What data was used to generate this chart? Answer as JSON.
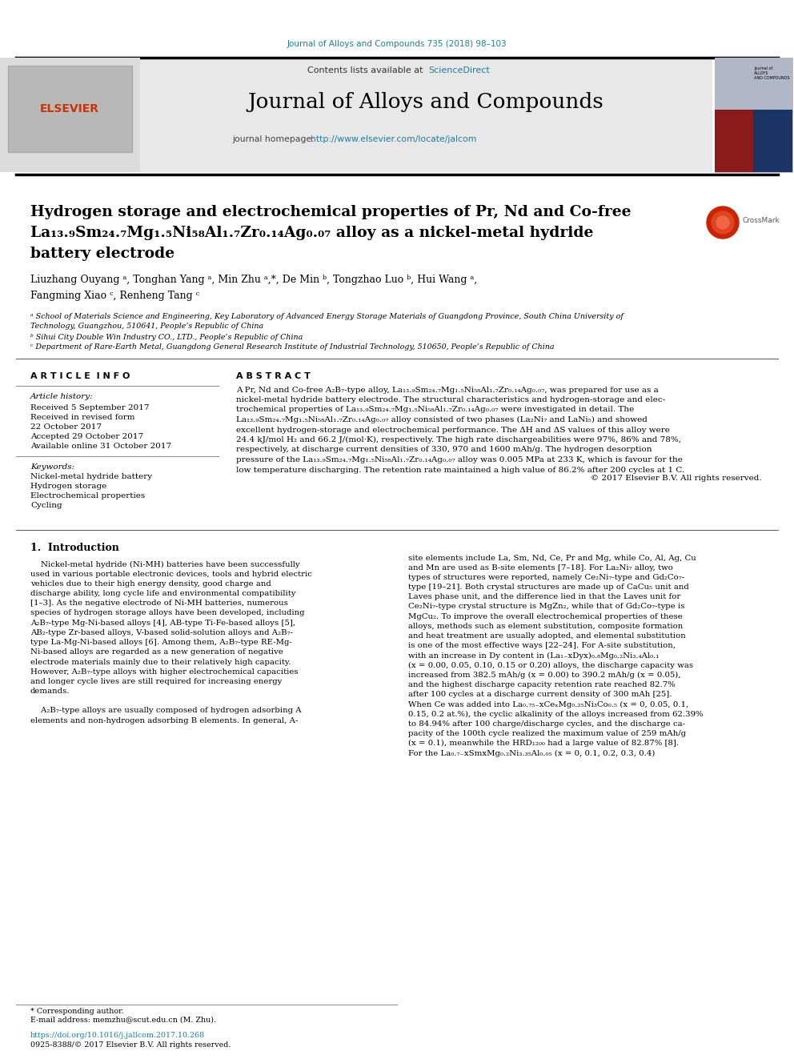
{
  "journal_ref": "Journal of Alloys and Compounds 735 (2018) 98–103",
  "journal_name": "Journal of Alloys and Compounds",
  "journal_homepage_label": "journal homepage:",
  "journal_homepage_url": "http://www.elsevier.com/locate/jalcom",
  "contents_label": "Contents lists available at ",
  "sciencedirect": "ScienceDirect",
  "title_line1": "Hydrogen storage and electrochemical properties of Pr, Nd and Co-free",
  "title_line2": "La₁₃.₉Sm₂₄.₇Mg₁.₅Ni₅₈Al₁.₇Zr₀.₁₄Ag₀.₀₇ alloy as a nickel-metal hydride",
  "title_line3": "battery electrode",
  "authors": "Liuzhang Ouyang ᵃ, Tonghan Yang ᵃ, Min Zhu ᵃ,*, De Min ᵇ, Tongzhao Luo ᵇ, Hui Wang ᵃ,",
  "authors2": "Fangming Xiao ᶜ, Renheng Tang ᶜ",
  "affil_a": "ᵃ School of Materials Science and Engineering, Key Laboratory of Advanced Energy Storage Materials of Guangdong Province, South China University of",
  "affil_a2": "Technology, Guangzhou, 510641, People’s Republic of China",
  "affil_b": "ᵇ Sihui City Double Win Industry CO., LTD., People’s Republic of China",
  "affil_c": "ᶜ Department of Rare-Earth Metal, Guangdong General Research Institute of Industrial Technology, 510650, People’s Republic of China",
  "article_info_title": "A R T I C L E  I N F O",
  "abstract_title": "A B S T R A C T",
  "article_history_label": "Article history:",
  "received1": "Received 5 September 2017",
  "received2": "Received in revised form",
  "date_revised": "22 October 2017",
  "accepted": "Accepted 29 October 2017",
  "available": "Available online 31 October 2017",
  "keywords_label": "Keywords:",
  "keyword1": "Nickel-metal hydride battery",
  "keyword2": "Hydrogen storage",
  "keyword3": "Electrochemical properties",
  "keyword4": "Cycling",
  "abstract_text_1": "A Pr, Nd and Co-free A₂B₇-type alloy, La₁₃.₉Sm₂₄.₇Mg₁.₅Ni₅₈Al₁.₇Zr₀.₁₄Ag₀.₀₇, was prepared for use as a",
  "abstract_text_2": "nickel-metal hydride battery electrode. The structural characteristics and hydrogen-storage and elec-",
  "abstract_text_3": "trochemical properties of La₁₃.₉Sm₂₄.₇Mg₁.₅Ni₅₈Al₁.₇Zr₀.₁₄Ag₀.₀₇ were investigated in detail. The",
  "abstract_text_4": "La₁₃.₉Sm₂₄.₇Mg₁.₅Ni₅₈Al₁.₇Zr₀.₁₄Ag₀.₀₇ alloy consisted of two phases (La₂Ni₇ and LaNi₅) and showed",
  "abstract_text_5": "excellent hydrogen-storage and electrochemical performance. The ΔH and ΔS values of this alloy were",
  "abstract_text_6": "24.4 kJ/mol H₂ and 66.2 J/(mol·K), respectively. The high rate dischargeabilities were 97%, 86% and 78%,",
  "abstract_text_7": "respectively, at discharge current densities of 330, 970 and 1600 mAh/g. The hydrogen desorption",
  "abstract_text_8": "pressure of the La₁₃.₉Sm₂₄.₇Mg₁.₅Ni₅₈Al₁.₇Zr₀.₁₄Ag₀.₀₇ alloy was 0.005 MPa at 233 K, which is favour for the",
  "abstract_text_9": "low temperature discharging. The retention rate maintained a high value of 86.2% after 200 cycles at 1 C.",
  "copyright": "© 2017 Elsevier B.V. All rights reserved.",
  "intro_title": "1.  Introduction",
  "intro_col1_lines": [
    "    Nickel-metal hydride (Ni-MH) batteries have been successfully",
    "used in various portable electronic devices, tools and hybrid electric",
    "vehicles due to their high energy density, good charge and",
    "discharge ability, long cycle life and environmental compatibility",
    "[1–3]. As the negative electrode of Ni-MH batteries, numerous",
    "species of hydrogen storage alloys have been developed, including",
    "A₂B₇-type Mg-Ni-based alloys [4], AB-type Ti-Fe-based alloys [5],",
    "AB₂-type Zr-based alloys, V-based solid-solution alloys and A₂B₇-",
    "type La-Mg-Ni-based alloys [6]. Among them, A₂B₇-type RE-Mg-",
    "Ni-based alloys are regarded as a new generation of negative",
    "electrode materials mainly due to their relatively high capacity.",
    "However, A₂B₇-type alloys with higher electrochemical capacities",
    "and longer cycle lives are still required for increasing energy",
    "demands.",
    "",
    "    A₂B₇-type alloys are usually composed of hydrogen adsorbing A",
    "elements and non-hydrogen adsorbing B elements. In general, A-"
  ],
  "intro_col2_lines": [
    "site elements include La, Sm, Nd, Ce, Pr and Mg, while Co, Al, Ag, Cu",
    "and Mn are used as B-site elements [7–18]. For La₂Ni₇ alloy, two",
    "types of structures were reported, namely Ce₂Ni₇-type and Gd₂Co₇-",
    "type [19–21]. Both crystal structures are made up of CaCu₅ unit and",
    "Laves phase unit, and the difference lied in that the Laves unit for",
    "Ce₂Ni₇-type crystal structure is MgZn₂, while that of Gd₂Co₇-type is",
    "MgCu₂. To improve the overall electrochemical properties of these",
    "alloys, methods such as element substitution, composite formation",
    "and heat treatment are usually adopted, and elemental substitution",
    "is one of the most effective ways [22–24]. For A-site substitution,",
    "with an increase in Dy content in (La₁₋xDyx)₀.₈Mg₀.₂Ni₃.₄Al₀.₁",
    "(x = 0.00, 0.05, 0.10, 0.15 or 0.20) alloys, the discharge capacity was",
    "increased from 382.5 mAh/g (x = 0.00) to 390.2 mAh/g (x = 0.05),",
    "and the highest discharge capacity retention rate reached 82.7%",
    "after 100 cycles at a discharge current density of 300 mAh [25].",
    "When Ce was added into La₀.₇₅₋xCeₓMg₀.₂₅Ni₃Co₀.₅ (x = 0, 0.05, 0.1,",
    "0.15, 0.2 at.%), the cyclic alkalinity of the alloys increased from 62.39%",
    "to 84.94% after 100 charge/discharge cycles, and the discharge ca-",
    "pacity of the 100th cycle realized the maximum value of 259 mAh/g",
    "(x = 0.1), meanwhile the HRD₁₂₀₀ had a large value of 82.87% [8].",
    "For the La₀.₇₋xSmxMg₀.₂Ni₃.₃₅Al₀.₀₅ (x = 0, 0.1, 0.2, 0.3, 0.4)"
  ],
  "footer_note": "* Corresponding author.",
  "footer_email": "E-mail address: memzhu@scut.edu.cn (M. Zhu).",
  "footer_doi": "https://doi.org/10.1016/j.jallcom.2017.10.268",
  "footer_issn": "0925-8388/© 2017 Elsevier B.V. All rights reserved.",
  "bg_color": "#ffffff",
  "header_bg": "#e8e8e8",
  "link_color": "#1a7fa0",
  "text_color": "#000000"
}
